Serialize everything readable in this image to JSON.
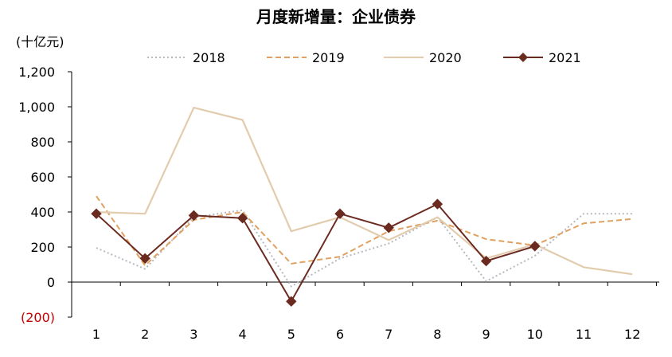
{
  "chart_data": {
    "type": "line",
    "title": "月度新增量：企业债券",
    "ylabel": "(十亿元)",
    "xlabel": "",
    "categories": [
      "1",
      "2",
      "3",
      "4",
      "5",
      "6",
      "7",
      "8",
      "9",
      "10",
      "11",
      "12"
    ],
    "ylim": [
      -200,
      1200
    ],
    "yticks": [
      {
        "value": 1200,
        "label": "1,200"
      },
      {
        "value": 1000,
        "label": "1,000"
      },
      {
        "value": 800,
        "label": "800"
      },
      {
        "value": 600,
        "label": "600"
      },
      {
        "value": 400,
        "label": "400"
      },
      {
        "value": 200,
        "label": "200"
      },
      {
        "value": 0,
        "label": "0"
      },
      {
        "value": -200,
        "label": "(200)"
      }
    ],
    "grid": false,
    "legend_position": "top",
    "series": [
      {
        "name": "2018",
        "style": "dotted",
        "color": "#B8B8C0",
        "marker": "none",
        "values": [
          195,
          75,
          370,
          410,
          -25,
          135,
          220,
          370,
          5,
          150,
          390,
          390
        ]
      },
      {
        "name": "2019",
        "style": "dashed",
        "color": "#E0A060",
        "marker": "none",
        "values": [
          490,
          95,
          355,
          400,
          105,
          145,
          290,
          350,
          245,
          210,
          335,
          360
        ]
      },
      {
        "name": "2020",
        "style": "solid",
        "color": "#E2CCAE",
        "marker": "none",
        "values": [
          400,
          390,
          995,
          925,
          290,
          370,
          240,
          370,
          135,
          215,
          85,
          45
        ]
      },
      {
        "name": "2021",
        "style": "solid",
        "color": "#6B2A20",
        "marker": "diamond",
        "values": [
          390,
          135,
          380,
          365,
          -110,
          390,
          310,
          445,
          120,
          205,
          null,
          null
        ]
      }
    ]
  }
}
